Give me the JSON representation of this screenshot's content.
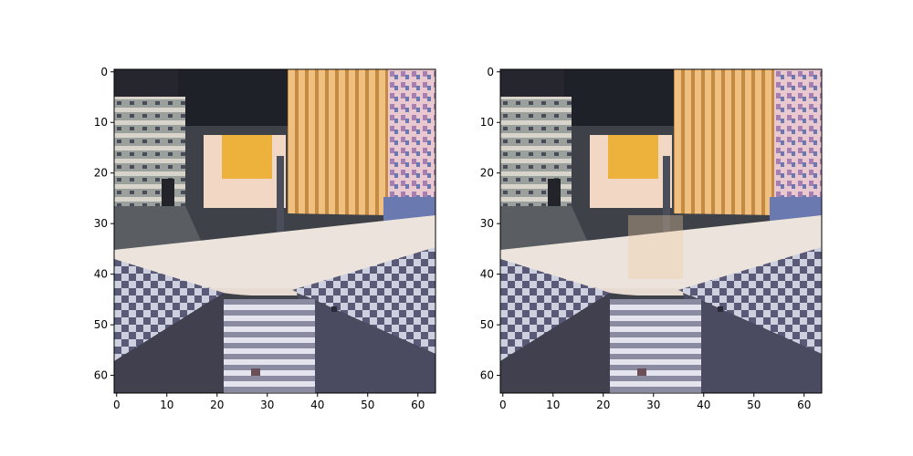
{
  "chart_data": [
    {
      "type": "heatmap",
      "content": "pixelated overhead view of mall interior with checkered floors, escalator and storefronts",
      "xlim": [
        -0.5,
        63.5
      ],
      "ylim": [
        63.5,
        -0.5
      ],
      "x_ticks": [
        0,
        10,
        20,
        30,
        40,
        50,
        60
      ],
      "y_ticks": [
        0,
        10,
        20,
        30,
        40,
        50,
        60
      ],
      "title": "",
      "xlabel": "",
      "ylabel": ""
    },
    {
      "type": "heatmap",
      "content": "pixelated overhead view of mall interior with checkered floors, escalator and storefronts",
      "xlim": [
        -0.5,
        63.5
      ],
      "ylim": [
        63.5,
        -0.5
      ],
      "x_ticks": [
        0,
        10,
        20,
        30,
        40,
        50,
        60
      ],
      "y_ticks": [
        0,
        10,
        20,
        30,
        40,
        50,
        60
      ],
      "title": "",
      "xlabel": "",
      "ylabel": ""
    }
  ]
}
